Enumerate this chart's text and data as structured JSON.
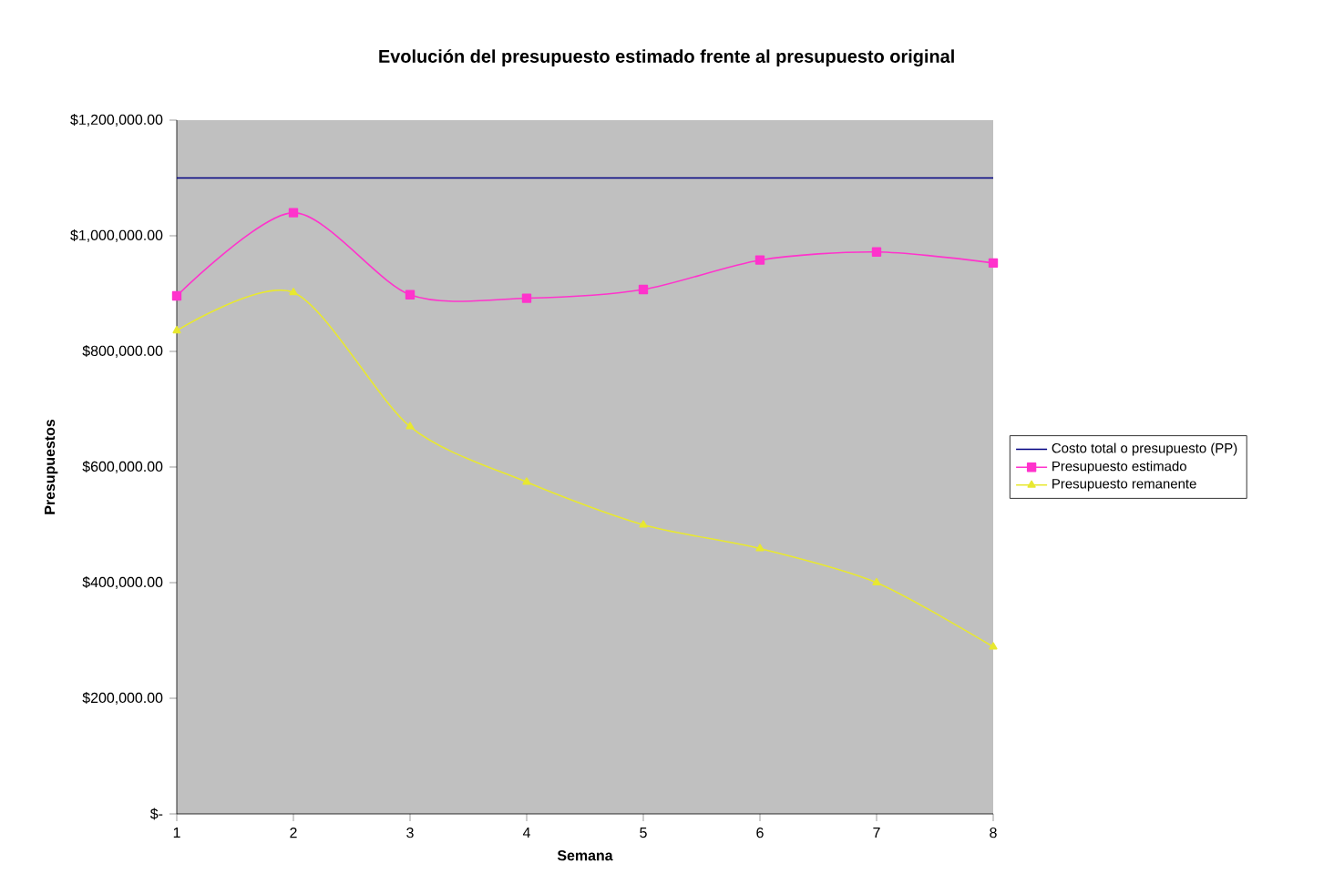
{
  "chart_data": {
    "type": "line",
    "title": "Evolución del presupuesto estimado frente al presupuesto original",
    "xlabel": "Semana",
    "ylabel": "Presupuestos",
    "x": [
      1,
      2,
      3,
      4,
      5,
      6,
      7,
      8
    ],
    "series": [
      {
        "name": "Costo total o presupuesto (PP)",
        "color": "#000080",
        "marker": "none",
        "values": [
          1100000,
          1100000,
          1100000,
          1100000,
          1100000,
          1100000,
          1100000,
          1100000
        ]
      },
      {
        "name": "Presupuesto estimado",
        "color": "#ff33cc",
        "marker": "square",
        "values": [
          896000,
          1040000,
          898000,
          892000,
          907000,
          958000,
          972000,
          953000
        ]
      },
      {
        "name": "Presupuesto remanente",
        "color": "#e8e830",
        "marker": "triangle",
        "values": [
          836000,
          902000,
          670000,
          574000,
          500000,
          459000,
          400000,
          289000
        ]
      }
    ],
    "xlim": [
      1,
      8
    ],
    "xticks": [
      1,
      2,
      3,
      4,
      5,
      6,
      7,
      8
    ],
    "ylim": [
      0,
      1200000
    ],
    "yticks": [
      {
        "value": 0,
        "label": "$-"
      },
      {
        "value": 200000,
        "label": "$200,000.00"
      },
      {
        "value": 400000,
        "label": "$400,000.00"
      },
      {
        "value": 600000,
        "label": "$600,000.00"
      },
      {
        "value": 800000,
        "label": "$800,000.00"
      },
      {
        "value": 1000000,
        "label": "$1,000,000.00"
      },
      {
        "value": 1200000,
        "label": "$1,200,000.00"
      }
    ],
    "legend": "right",
    "grid": false,
    "line_style": "solid"
  }
}
